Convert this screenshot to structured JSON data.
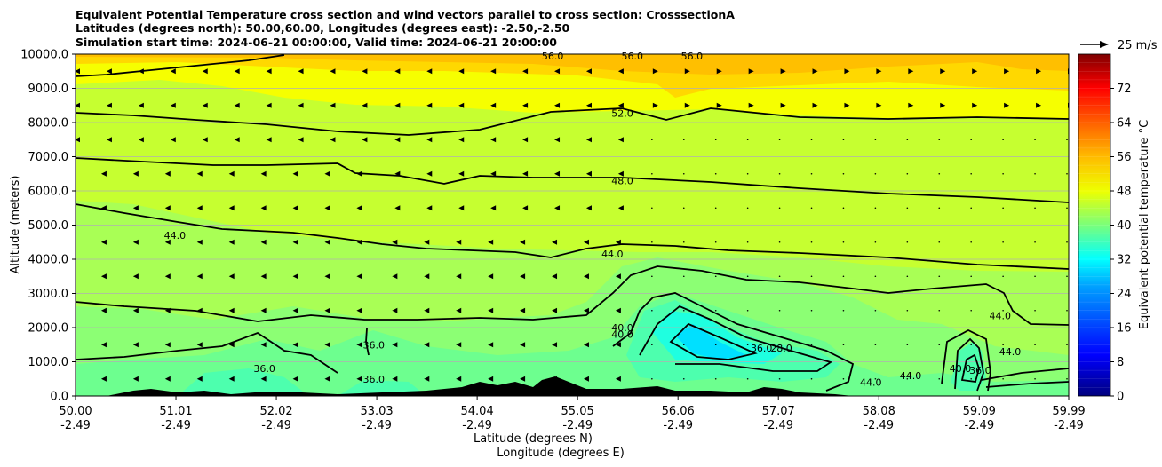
{
  "chart_data": {
    "type": "contour",
    "title_lines": [
      "Equivalent Potential Temperature cross section and wind vectors parallel to cross section: CrosssectionA",
      "Latitudes (degrees north): 50.00,60.00, Longitudes (degrees east): -2.50,-2.50",
      "Simulation start time: 2024-06-21 00:00:00, Valid time: 2024-06-21 20:00:00"
    ],
    "xlabel": "Latitude (degrees N)",
    "xlabel2": "Longitude (degrees E)",
    "ylabel": "Altitude (meters)",
    "xlim": [
      50.0,
      59.99
    ],
    "ylim": [
      0,
      10000
    ],
    "x_ticks": [
      {
        "lat": "50.00",
        "lon": "-2.49"
      },
      {
        "lat": "51.01",
        "lon": "-2.49"
      },
      {
        "lat": "52.02",
        "lon": "-2.49"
      },
      {
        "lat": "53.03",
        "lon": "-2.49"
      },
      {
        "lat": "54.04",
        "lon": "-2.49"
      },
      {
        "lat": "55.05",
        "lon": "-2.49"
      },
      {
        "lat": "56.06",
        "lon": "-2.49"
      },
      {
        "lat": "57.07",
        "lon": "-2.49"
      },
      {
        "lat": "58.08",
        "lon": "-2.49"
      },
      {
        "lat": "59.09",
        "lon": "-2.49"
      },
      {
        "lat": "59.99",
        "lon": "-2.49"
      }
    ],
    "y_ticks": [
      "0.0",
      "1000.0",
      "2000.0",
      "3000.0",
      "4000.0",
      "5000.0",
      "6000.0",
      "7000.0",
      "8000.0",
      "9000.0",
      "10000.0"
    ],
    "grid": "horizontal",
    "colorbar": {
      "label": "Equivalent potential temperature $^\\circ$C",
      "label_text": "Equivalent potential temperature °C",
      "range": [
        0,
        80
      ],
      "ticks": [
        "0",
        "8",
        "16",
        "24",
        "32",
        "40",
        "48",
        "56",
        "64",
        "72"
      ],
      "colormap": "jet"
    },
    "quiver_key": {
      "label": "25 m/s",
      "speed": 25
    },
    "contour_labels": [
      {
        "text": "52.0",
        "lat": 55.5,
        "alt": 8270
      },
      {
        "text": "48.0",
        "lat": 55.5,
        "alt": 6300
      },
      {
        "text": "44.0",
        "lat": 55.4,
        "alt": 4150
      },
      {
        "text": "40.0",
        "lat": 55.5,
        "alt": 2000
      },
      {
        "text": "40.0",
        "lat": 55.5,
        "alt": 1800
      },
      {
        "text": "36.0",
        "lat": 53.0,
        "alt": 1500
      },
      {
        "text": "36.0",
        "lat": 51.9,
        "alt": 800
      },
      {
        "text": "36.0",
        "lat": 53.0,
        "alt": 500
      },
      {
        "text": "36.0",
        "lat": 56.9,
        "alt": 1400
      },
      {
        "text": "28.0",
        "lat": 57.1,
        "alt": 1400
      },
      {
        "text": "44.0",
        "lat": 51.0,
        "alt": 4700
      },
      {
        "text": "44.0",
        "lat": 59.3,
        "alt": 2350
      },
      {
        "text": "44.0",
        "lat": 59.4,
        "alt": 1300
      },
      {
        "text": "44.0",
        "lat": 58.0,
        "alt": 400
      },
      {
        "text": "44.0",
        "lat": 58.4,
        "alt": 600
      },
      {
        "text": "40.0",
        "lat": 58.9,
        "alt": 800
      },
      {
        "text": "36.0",
        "lat": 59.1,
        "alt": 750
      },
      {
        "text": "56.0",
        "lat": 54.8,
        "alt": 9950
      },
      {
        "text": "56.0",
        "lat": 55.6,
        "alt": 9950
      },
      {
        "text": "56.0",
        "lat": 56.2,
        "alt": 9950
      }
    ]
  }
}
